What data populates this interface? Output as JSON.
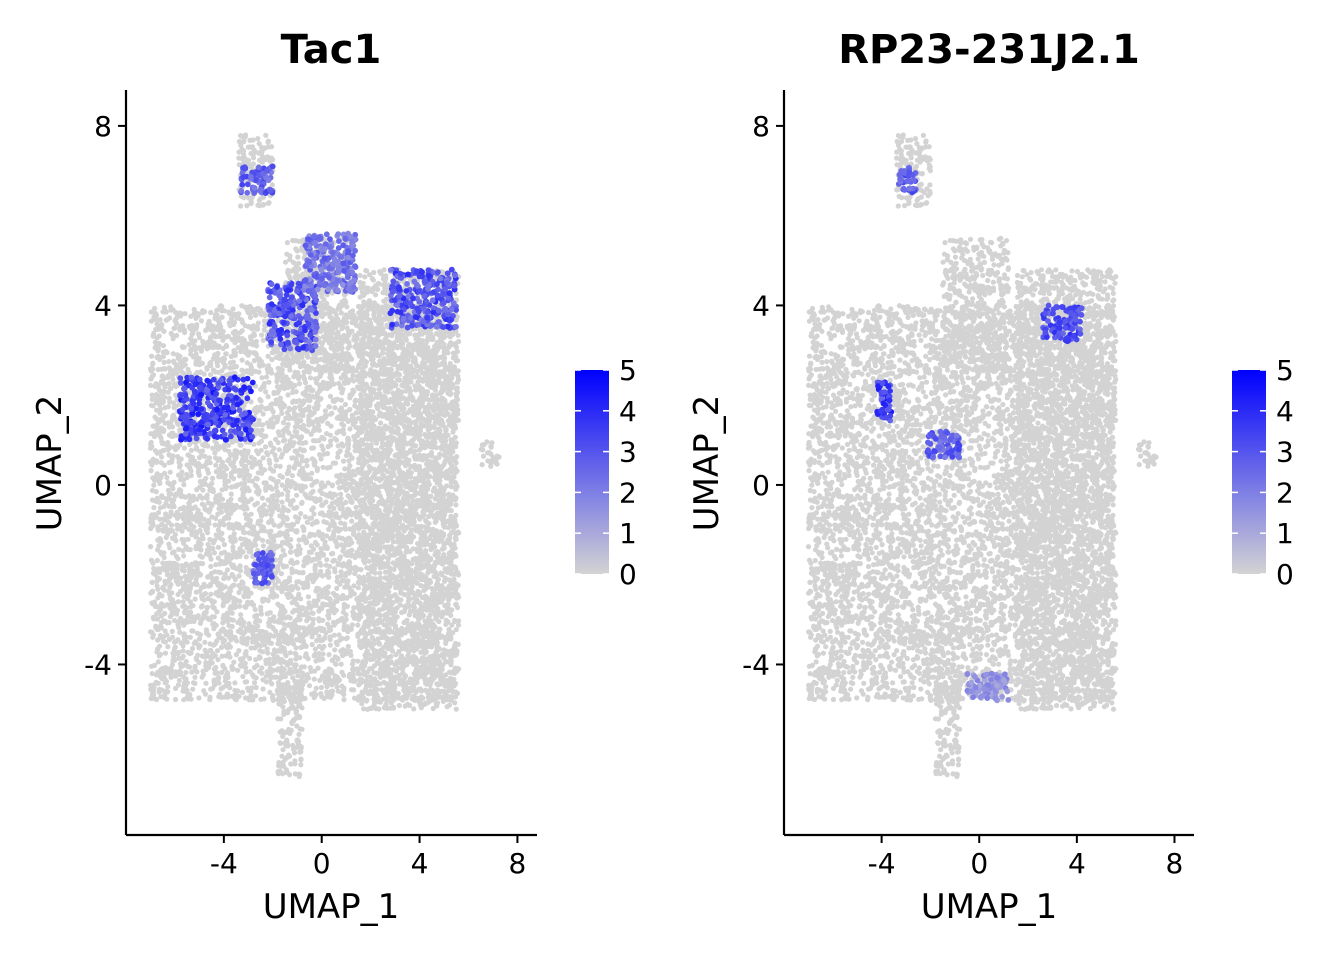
{
  "chart_data": [
    {
      "type": "scatter",
      "title": "Tac1",
      "xlabel": "UMAP_1",
      "ylabel": "UMAP_2",
      "xlim": [
        -8,
        8.8
      ],
      "ylim": [
        -7.8,
        8.8
      ],
      "xticks": [
        -4,
        0,
        4,
        8
      ],
      "yticks": [
        -4,
        0,
        4,
        8
      ],
      "xtick_labels": [
        "-4",
        "0",
        "4",
        "8"
      ],
      "ytick_labels": [
        "-4",
        "0",
        "4",
        "8"
      ],
      "grid": false,
      "legend": {
        "type": "colorbar",
        "placement": "right",
        "min": 0,
        "max": 5,
        "ticks": [
          "0",
          "1",
          "2",
          "3",
          "4",
          "5"
        ]
      },
      "colors": {
        "low": "#d3d3d3",
        "high": "#0000ff"
      },
      "background": {
        "color": "#d3d3d3",
        "regions": [
          {
            "x": [
              -7,
              5.5
            ],
            "y": [
              -4.8,
              4.0
            ]
          },
          {
            "x": [
              -1.5,
              1.2
            ],
            "y": [
              2.5,
              5.5
            ]
          },
          {
            "x": [
              1.5,
              5.6
            ],
            "y": [
              -5.0,
              4.8
            ]
          },
          {
            "x": [
              -1.8,
              -0.8
            ],
            "y": [
              -6.5,
              -4.2
            ]
          },
          {
            "x": [
              -3.4,
              -2.0
            ],
            "y": [
              6.2,
              7.8
            ]
          },
          {
            "x": [
              6.5,
              7.3
            ],
            "y": [
              0.4,
              1.0
            ]
          }
        ]
      },
      "highlights": [
        {
          "x": [
            -5.8,
            -2.8
          ],
          "y": [
            1.0,
            2.4
          ],
          "level": [
            2.5,
            4.5
          ]
        },
        {
          "x": [
            -2.2,
            -0.2
          ],
          "y": [
            3.0,
            4.5
          ],
          "level": [
            2.0,
            4.0
          ]
        },
        {
          "x": [
            -0.7,
            1.4
          ],
          "y": [
            4.3,
            5.6
          ],
          "level": [
            1.5,
            3.0
          ]
        },
        {
          "x": [
            2.8,
            5.5
          ],
          "y": [
            3.5,
            4.8
          ],
          "level": [
            2.0,
            4.0
          ]
        },
        {
          "x": [
            -3.3,
            -2.0
          ],
          "y": [
            6.5,
            7.1
          ],
          "level": [
            2.0,
            3.5
          ]
        },
        {
          "x": [
            -2.8,
            -2.0
          ],
          "y": [
            -2.2,
            -1.5
          ],
          "level": [
            2.0,
            3.5
          ]
        }
      ]
    },
    {
      "type": "scatter",
      "title": "RP23-231J2.1",
      "xlabel": "UMAP_1",
      "ylabel": "UMAP_2",
      "xlim": [
        -8,
        8.8
      ],
      "ylim": [
        -7.8,
        8.8
      ],
      "xticks": [
        -4,
        0,
        4,
        8
      ],
      "yticks": [
        -4,
        0,
        4,
        8
      ],
      "xtick_labels": [
        "-4",
        "0",
        "4",
        "8"
      ],
      "ytick_labels": [
        "-4",
        "0",
        "4",
        "8"
      ],
      "grid": false,
      "legend": {
        "type": "colorbar",
        "placement": "right",
        "min": 0,
        "max": 5,
        "ticks": [
          "0",
          "1",
          "2",
          "3",
          "4",
          "5"
        ]
      },
      "colors": {
        "low": "#d3d3d3",
        "high": "#0000ff"
      },
      "background": {
        "color": "#d3d3d3",
        "regions": [
          {
            "x": [
              -7,
              5.5
            ],
            "y": [
              -4.8,
              4.0
            ]
          },
          {
            "x": [
              -1.5,
              1.2
            ],
            "y": [
              2.5,
              5.5
            ]
          },
          {
            "x": [
              1.5,
              5.6
            ],
            "y": [
              -5.0,
              4.8
            ]
          },
          {
            "x": [
              -1.8,
              -0.8
            ],
            "y": [
              -6.5,
              -4.2
            ]
          },
          {
            "x": [
              -3.4,
              -2.0
            ],
            "y": [
              6.2,
              7.8
            ]
          },
          {
            "x": [
              6.5,
              7.3
            ],
            "y": [
              0.4,
              1.0
            ]
          }
        ]
      },
      "highlights": [
        {
          "x": [
            2.6,
            4.2
          ],
          "y": [
            3.2,
            4.0
          ],
          "level": [
            2.5,
            4.0
          ]
        },
        {
          "x": [
            -2.2,
            -0.8
          ],
          "y": [
            0.6,
            1.2
          ],
          "level": [
            2.0,
            3.5
          ]
        },
        {
          "x": [
            -4.2,
            -3.6
          ],
          "y": [
            1.4,
            2.3
          ],
          "level": [
            2.5,
            4.5
          ]
        },
        {
          "x": [
            -3.3,
            -2.6
          ],
          "y": [
            6.5,
            7.1
          ],
          "level": [
            2.0,
            3.5
          ]
        },
        {
          "x": [
            -0.5,
            1.2
          ],
          "y": [
            -4.8,
            -4.2
          ],
          "level": [
            1.0,
            2.0
          ]
        }
      ]
    }
  ]
}
